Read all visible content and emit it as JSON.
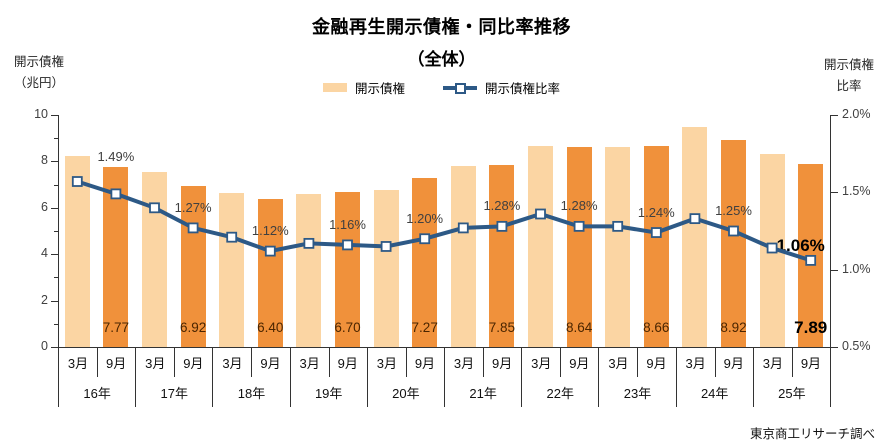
{
  "title": "金融再生開示債権・同比率推移",
  "subtitle": "（全体）",
  "legend": {
    "bar_label": "開示債権",
    "line_label": "開示債権比率"
  },
  "axes": {
    "left_title_line1": "開示債権",
    "left_title_line2": "（兆円）",
    "right_title_line1": "開示債権",
    "right_title_line2": "比率"
  },
  "source": "東京商工リサーチ調べ",
  "colors": {
    "bar_march": "#FBD5A3",
    "bar_september": "#F0913B",
    "line": "#2D5986",
    "marker_fill": "#FFFFFF",
    "bar_value_label": "#4A2500",
    "tick_text": "#404040",
    "axis_line": "#333333",
    "emphasis_text": "#000000"
  },
  "chart_data": {
    "type": "bar",
    "combo": "bar+line",
    "title": "金融再生開示債権・同比率推移",
    "subtitle": "（全体）",
    "years": [
      "16年",
      "17年",
      "18年",
      "19年",
      "20年",
      "21年",
      "22年",
      "23年",
      "24年",
      "25年"
    ],
    "months": [
      "3月",
      "9月"
    ],
    "categories": [
      "16年3月",
      "16年9月",
      "17年3月",
      "17年9月",
      "18年3月",
      "18年9月",
      "19年3月",
      "19年9月",
      "20年3月",
      "20年9月",
      "21年3月",
      "21年9月",
      "22年3月",
      "22年9月",
      "23年3月",
      "23年9月",
      "24年3月",
      "24年9月",
      "25年3月",
      "25年9月"
    ],
    "series": [
      {
        "name": "開示債権",
        "type": "bar",
        "unit": "兆円",
        "axis": "left",
        "values": [
          8.25,
          7.77,
          7.55,
          6.92,
          6.62,
          6.4,
          6.6,
          6.7,
          6.78,
          7.27,
          7.82,
          7.85,
          8.67,
          8.64,
          8.62,
          8.66,
          9.48,
          8.92,
          8.33,
          7.89
        ],
        "labels": [
          "",
          "7.77",
          "",
          "6.92",
          "",
          "6.40",
          "",
          "6.70",
          "",
          "7.27",
          "",
          "7.85",
          "",
          "8.64",
          "",
          "8.66",
          "",
          "8.92",
          "",
          "7.89"
        ]
      },
      {
        "name": "開示債権比率",
        "type": "line",
        "unit": "%",
        "axis": "right",
        "values": [
          1.57,
          1.49,
          1.4,
          1.27,
          1.21,
          1.12,
          1.17,
          1.16,
          1.15,
          1.2,
          1.27,
          1.28,
          1.36,
          1.28,
          1.28,
          1.24,
          1.33,
          1.25,
          1.14,
          1.06
        ],
        "labels": [
          "",
          "1.49%",
          "",
          "1.27%",
          "",
          "1.12%",
          "",
          "1.16%",
          "",
          "1.20%",
          "",
          "1.28%",
          "",
          "1.28%",
          "",
          "1.24%",
          "",
          "1.25%",
          "",
          "1.06%"
        ]
      }
    ],
    "y_axis_left": {
      "range": [
        0,
        10
      ],
      "major_ticks": [
        0,
        2,
        4,
        6,
        8,
        10
      ],
      "minor_ticks": [
        1,
        3,
        5,
        7,
        9
      ]
    },
    "y_axis_right": {
      "range": [
        0.5,
        2.0
      ],
      "tick_values": [
        0.5,
        1.0,
        1.5,
        2.0
      ],
      "tick_labels": [
        "0.5%",
        "1.0%",
        "1.5%",
        "2.0%"
      ]
    },
    "emphasis": {
      "bar_label_index": 19,
      "line_label_index": 19
    },
    "grid": false,
    "legend_position": "top-center"
  }
}
